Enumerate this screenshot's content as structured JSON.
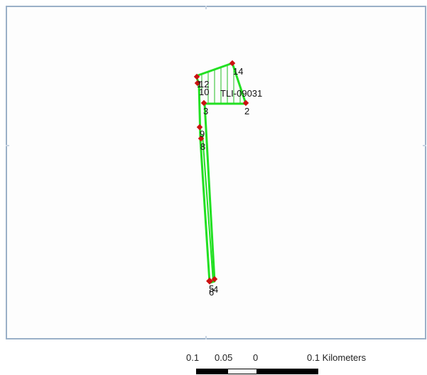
{
  "parcel": {
    "id_label": "TLI-09031",
    "outline_color": "#22e022",
    "vertex_color": "#cc1111",
    "hatch_color": "#22c022"
  },
  "vertex_labels": [
    "14",
    "1",
    "12",
    "10",
    "3",
    "2",
    "9",
    "8",
    "5",
    "4",
    "6"
  ],
  "scale_bar": {
    "labels": [
      "0.1",
      "0.05",
      "0",
      "0.1 Kilometers"
    ],
    "segment_colors": [
      "#000000",
      "#ffffff",
      "#000000"
    ]
  },
  "frame_color": "#9ab0c8"
}
